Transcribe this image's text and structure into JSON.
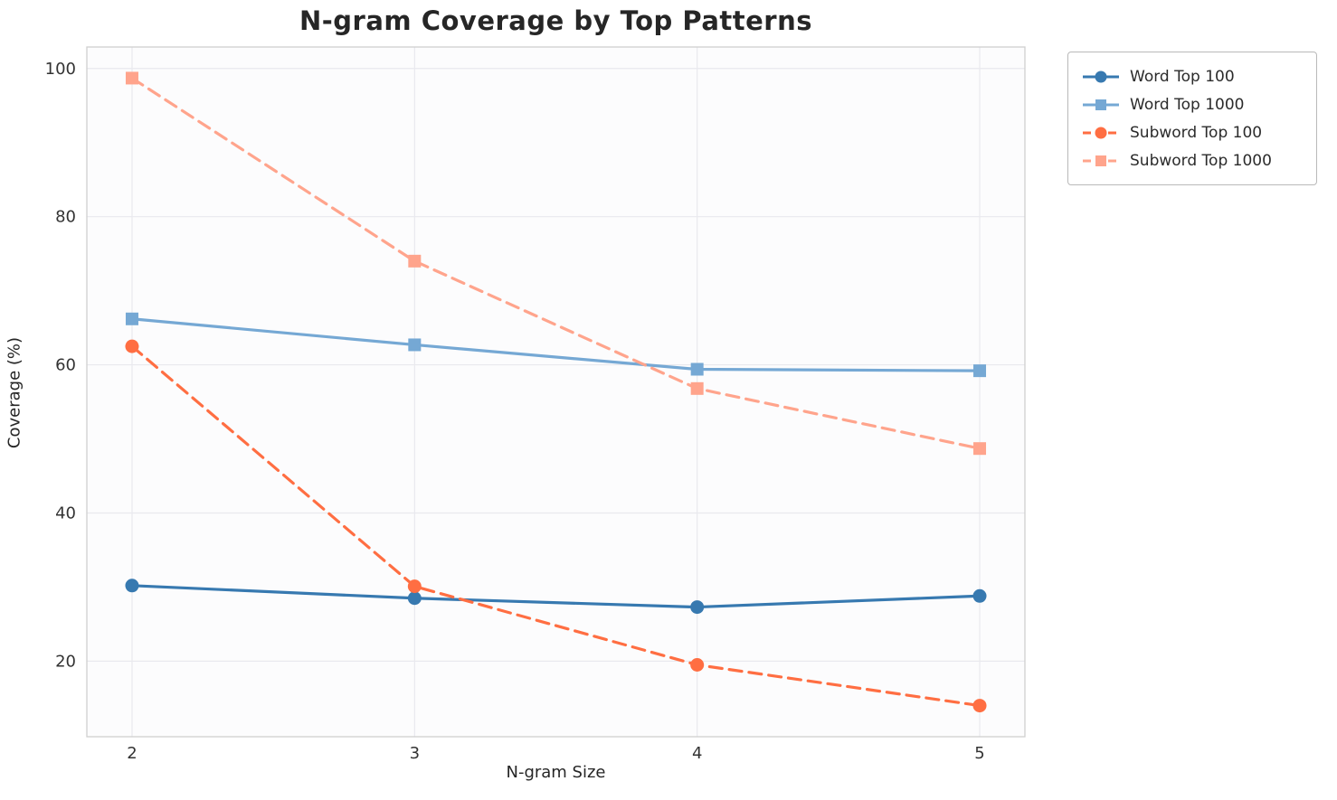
{
  "chart": {
    "title": "N-gram Coverage by Top Patterns",
    "xlabel": "N-gram Size",
    "ylabel": "Coverage (%)"
  },
  "chart_data": {
    "type": "line",
    "title": "N-gram Coverage by Top Patterns",
    "xlabel": "N-gram Size",
    "ylabel": "Coverage (%)",
    "x": [
      2,
      3,
      4,
      5
    ],
    "xticks": [
      "2",
      "3",
      "4",
      "5"
    ],
    "yticks": [
      20,
      40,
      60,
      80,
      100
    ],
    "xlim": [
      1.84,
      5.16
    ],
    "ylim": [
      9.8,
      102.9
    ],
    "grid": true,
    "legend_position": "outside upper right",
    "series": [
      {
        "name": "Word Top 100",
        "values": [
          30.2,
          28.5,
          27.3,
          28.8
        ],
        "color": "#3779b0",
        "linestyle": "solid",
        "marker": "circle"
      },
      {
        "name": "Word Top 1000",
        "values": [
          66.2,
          62.7,
          59.4,
          59.2
        ],
        "color": "#75a8d4",
        "linestyle": "solid",
        "marker": "square"
      },
      {
        "name": "Subword Top 100",
        "values": [
          62.5,
          30.1,
          19.5,
          14.0
        ],
        "color": "#ff6e42",
        "linestyle": "dashed",
        "marker": "circle"
      },
      {
        "name": "Subword Top 1000",
        "values": [
          98.7,
          74.0,
          56.8,
          48.7
        ],
        "color": "#ffa48c",
        "linestyle": "dashed",
        "marker": "square"
      }
    ],
    "style": {
      "grid_color": "#e9e9ee",
      "spine_color": "#cfcfcf",
      "plot_background": "#fcfcfd",
      "tick_label_color": "#333333"
    }
  }
}
